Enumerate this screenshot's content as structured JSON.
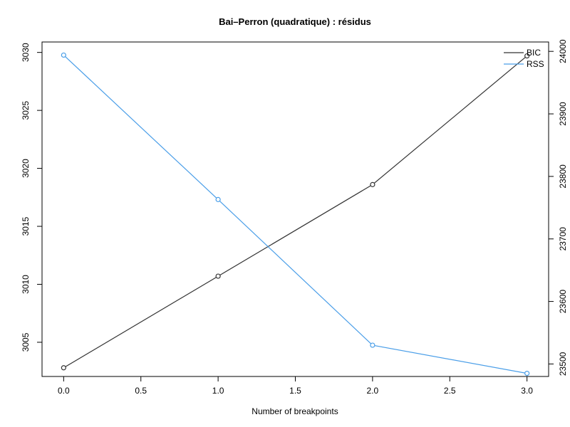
{
  "chart_data": {
    "type": "line",
    "title": "Bai–Perron (quadratique) : résidus",
    "xlabel": "Number of breakpoints",
    "ylabel": "",
    "ylabel_right": "",
    "x": [
      0,
      1,
      2,
      3
    ],
    "xlim": [
      0,
      3
    ],
    "ylim": [
      3002.5,
      3030
    ],
    "ylim_right": [
      23480,
      24000
    ],
    "x_ticks": [
      "0.0",
      "0.5",
      "1.0",
      "1.5",
      "2.0",
      "2.5",
      "3.0"
    ],
    "y_ticks_left": [
      "3005",
      "3010",
      "3015",
      "3020",
      "3025",
      "3030"
    ],
    "y_ticks_right": [
      "23500",
      "23600",
      "23700",
      "23800",
      "23900",
      "24000"
    ],
    "grid": false,
    "legend_position": "top-right",
    "series": [
      {
        "name": "BIC",
        "axis": "left",
        "color": "#333333",
        "values": [
          3002.8,
          3010.7,
          3018.6,
          3029.7
        ]
      },
      {
        "name": "RSS",
        "axis": "right",
        "color": "#4a9ee8",
        "values": [
          23994,
          23763,
          23530,
          23485
        ]
      }
    ]
  }
}
